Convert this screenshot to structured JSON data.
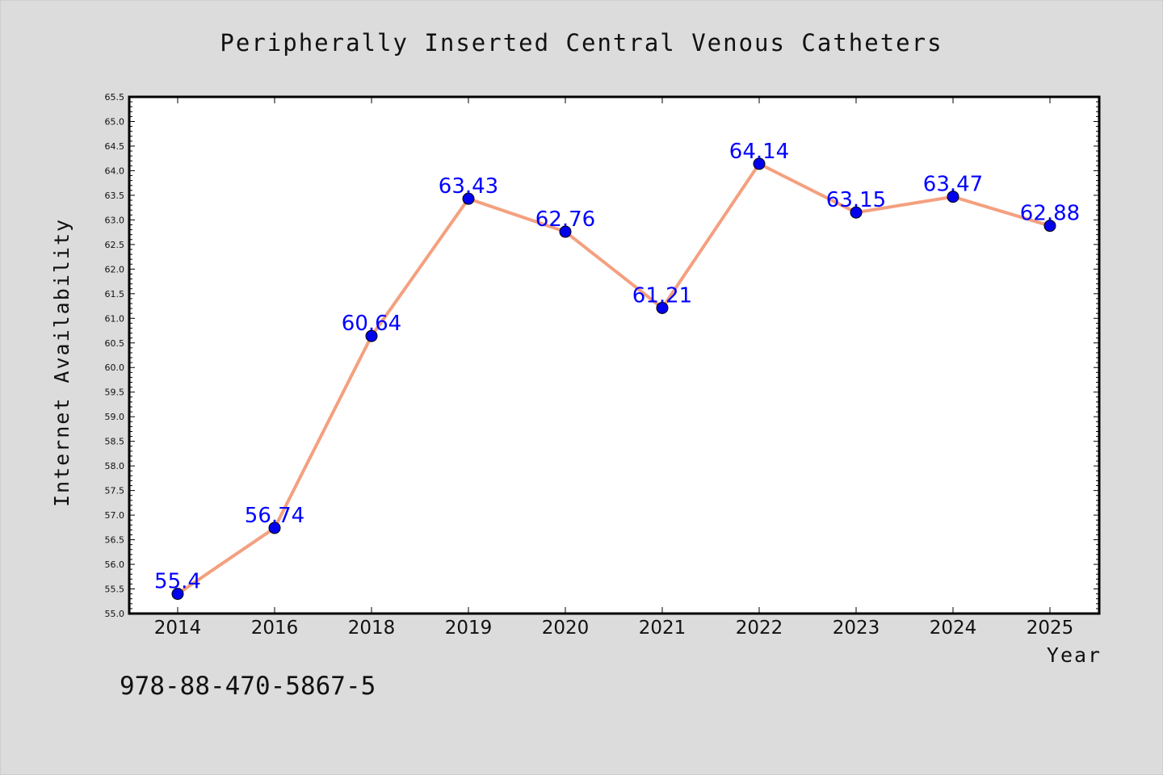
{
  "chart_data": {
    "type": "line",
    "title": "Peripherally Inserted Central Venous Catheters",
    "xlabel": "Year",
    "ylabel": "Internet Availability",
    "categories": [
      "2014",
      "2016",
      "2018",
      "2019",
      "2020",
      "2021",
      "2022",
      "2023",
      "2024",
      "2025"
    ],
    "series": [
      {
        "values": [
          55.4,
          56.74,
          60.64,
          63.43,
          62.76,
          61.21,
          64.14,
          63.15,
          63.47,
          62.88
        ],
        "labels": [
          "55.4",
          "56.74",
          "60.64",
          "63.43",
          "62.76",
          "61.21",
          "64.14",
          "63.15",
          "63.47",
          "62.88"
        ],
        "line_color": "#f4a07f",
        "marker_color": "#0000ee"
      }
    ],
    "ylim": [
      55.0,
      65.5
    ],
    "yticks": [
      "55.0",
      "55.5",
      "56.0",
      "56.5",
      "57.0",
      "57.5",
      "58.0",
      "58.5",
      "59.0",
      "59.5",
      "60.0",
      "60.5",
      "61.0",
      "61.5",
      "62.0",
      "62.5",
      "63.0",
      "63.5",
      "64.0",
      "64.5",
      "65.0",
      "65.5"
    ],
    "grid": false,
    "legend": "none",
    "label_color": "#0000ff"
  },
  "footer": {
    "id_text": "978-88-470-5867-5"
  }
}
